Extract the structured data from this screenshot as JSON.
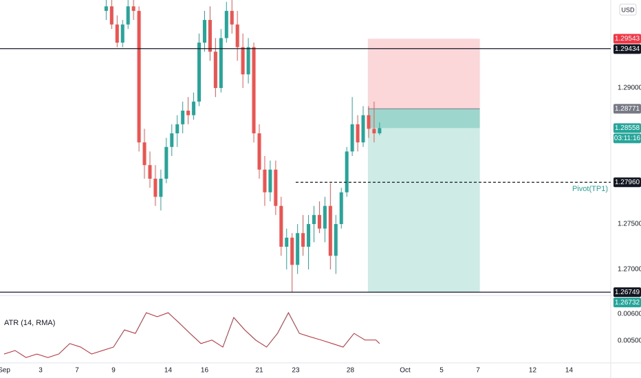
{
  "chart_data": [
    {
      "type": "candlestick",
      "currency": "USD",
      "xlim": [
        -0.226,
        33.283
      ],
      "ylim": [
        1.26712,
        1.2997
      ],
      "yticks": [
        {
          "value": 1.29,
          "label": "1.29000"
        },
        {
          "value": 1.275,
          "label": "1.27500"
        },
        {
          "value": 1.27,
          "label": "1.27000"
        }
      ],
      "grid": false,
      "up_color": "#26a69a",
      "down_color": "#ef5350",
      "x": [
        5.6,
        5.9,
        6.2,
        6.5,
        6.8,
        7.1,
        7.4,
        7.7,
        8.0,
        8.3,
        8.6,
        8.9,
        9.2,
        9.5,
        9.8,
        10.1,
        10.4,
        10.7,
        11.0,
        11.3,
        11.6,
        11.9,
        12.2,
        12.5,
        12.8,
        13.1,
        13.4,
        13.7,
        14.0,
        14.3,
        14.6,
        14.9,
        15.2,
        15.5,
        15.8,
        16.1,
        16.4,
        16.7,
        17.0,
        17.3,
        17.6,
        17.9,
        18.2,
        18.5,
        18.8,
        19.1,
        19.4,
        19.7,
        20.0,
        20.3,
        20.6
      ],
      "open": [
        1.2985,
        1.299,
        1.297,
        1.295,
        1.297,
        1.299,
        1.2985,
        1.284,
        1.2815,
        1.28,
        1.278,
        1.28,
        1.2835,
        1.285,
        1.286,
        1.2875,
        1.287,
        1.2885,
        1.295,
        1.2975,
        1.294,
        1.29,
        1.2955,
        1.2985,
        1.297,
        1.2945,
        1.2915,
        1.2945,
        1.285,
        1.281,
        1.2785,
        1.281,
        1.277,
        1.2725,
        1.2735,
        1.2705,
        1.274,
        1.2725,
        1.275,
        1.276,
        1.2745,
        1.277,
        1.2715,
        1.275,
        1.2785,
        1.283,
        1.286,
        1.284,
        1.287,
        1.2855,
        1.285
      ],
      "high": [
        1.2997,
        1.2997,
        1.298,
        1.2975,
        1.2997,
        1.2997,
        1.299,
        1.2855,
        1.283,
        1.2815,
        1.281,
        1.2845,
        1.286,
        1.287,
        1.2885,
        1.289,
        1.2895,
        1.296,
        1.2985,
        1.299,
        1.2955,
        1.2965,
        1.2995,
        1.2997,
        1.2985,
        1.296,
        1.2955,
        1.295,
        1.286,
        1.2825,
        1.282,
        1.282,
        1.278,
        1.2745,
        1.274,
        1.275,
        1.276,
        1.276,
        1.277,
        1.2775,
        1.278,
        1.2795,
        1.276,
        1.279,
        1.2835,
        1.289,
        1.287,
        1.288,
        1.288,
        1.2885,
        1.2862
      ],
      "low": [
        1.2975,
        1.2965,
        1.2945,
        1.2945,
        1.2965,
        1.2975,
        1.283,
        1.28,
        1.279,
        1.277,
        1.2765,
        1.2795,
        1.2825,
        1.2835,
        1.285,
        1.286,
        1.2865,
        1.288,
        1.294,
        1.293,
        1.289,
        1.2895,
        1.295,
        1.296,
        1.293,
        1.29,
        1.2905,
        1.284,
        1.28,
        1.277,
        1.2775,
        1.276,
        1.2715,
        1.27,
        1.2675,
        1.2695,
        1.2715,
        1.27,
        1.273,
        1.274,
        1.273,
        1.27,
        1.2695,
        1.2745,
        1.278,
        1.2825,
        1.283,
        1.2835,
        1.2845,
        1.284,
        1.2848
      ],
      "close": [
        1.299,
        1.297,
        1.295,
        1.297,
        1.299,
        1.2985,
        1.284,
        1.2815,
        1.28,
        1.278,
        1.28,
        1.2835,
        1.285,
        1.286,
        1.2875,
        1.287,
        1.2885,
        1.295,
        1.2975,
        1.294,
        1.29,
        1.2955,
        1.2985,
        1.297,
        1.2945,
        1.2915,
        1.2945,
        1.285,
        1.281,
        1.2785,
        1.281,
        1.277,
        1.2725,
        1.2735,
        1.2705,
        1.274,
        1.2725,
        1.275,
        1.276,
        1.2745,
        1.277,
        1.2715,
        1.275,
        1.2785,
        1.283,
        1.286,
        1.284,
        1.287,
        1.2855,
        1.285,
        1.28558
      ],
      "position": {
        "x_start": 19.96,
        "x_end": 26.1,
        "stop": 1.29543,
        "entry": 1.28771,
        "target": 1.26749
      },
      "lines": [
        {
          "value": 1.29434,
          "style": "solid"
        },
        {
          "value": 1.26749,
          "style": "solid"
        },
        {
          "value": 1.2796,
          "style": "dashed",
          "x_start": 16,
          "label": "Pivot(TP1)"
        }
      ],
      "price_labels": [
        {
          "value": 1.29543,
          "color": "#f23645"
        },
        {
          "value": 1.29434,
          "color": "#131722"
        },
        {
          "value": 1.28771,
          "color": "#787b86"
        },
        {
          "value": 1.28558,
          "color": "#26a69a",
          "countdown": "03:11:16"
        },
        {
          "value": 1.2796,
          "label": "1.27960",
          "color": "#131722"
        },
        {
          "value": 1.26749,
          "color": "#131722"
        },
        {
          "value": 1.26732,
          "color": "#26a69a"
        }
      ]
    },
    {
      "type": "line",
      "title": "ATR (14, RMA)",
      "color": "#b22833",
      "xlim": [
        -0.226,
        33.283
      ],
      "ylim": [
        0.00418,
        0.00669
      ],
      "yticks": [
        {
          "value": 0.006,
          "label": "0.00600"
        },
        {
          "value": 0.005,
          "label": "0.00500"
        }
      ],
      "xticks": [
        {
          "value": 0,
          "label": "Sep"
        },
        {
          "value": 2,
          "label": "3"
        },
        {
          "value": 4,
          "label": "7"
        },
        {
          "value": 6,
          "label": "9"
        },
        {
          "value": 9,
          "label": "14"
        },
        {
          "value": 11,
          "label": "16"
        },
        {
          "value": 14,
          "label": "21"
        },
        {
          "value": 16,
          "label": "23"
        },
        {
          "value": 19,
          "label": "28"
        },
        {
          "value": 22,
          "label": "Oct"
        },
        {
          "value": 24,
          "label": "5"
        },
        {
          "value": 26,
          "label": "7"
        },
        {
          "value": 29,
          "label": "12"
        },
        {
          "value": 31,
          "label": "14"
        }
      ],
      "x": [
        0,
        0.6,
        1.2,
        1.8,
        2.4,
        3.0,
        3.6,
        4.2,
        4.8,
        5.4,
        6.0,
        6.6,
        7.2,
        7.8,
        8.4,
        9.0,
        9.6,
        10.2,
        10.8,
        11.4,
        12.0,
        12.6,
        13.2,
        13.8,
        14.4,
        15.0,
        15.6,
        16.2,
        16.8,
        17.4,
        18.0,
        18.6,
        19.2,
        19.8,
        20.4,
        20.6
      ],
      "values": [
        0.00451,
        0.00464,
        0.00438,
        0.00451,
        0.00438,
        0.00451,
        0.0049,
        0.00477,
        0.00451,
        0.00464,
        0.00477,
        0.00541,
        0.00528,
        0.00605,
        0.0059,
        0.00605,
        0.00567,
        0.00528,
        0.0049,
        0.00503,
        0.00477,
        0.00587,
        0.00541,
        0.00503,
        0.00477,
        0.00528,
        0.00605,
        0.00528,
        0.00515,
        0.00503,
        0.0049,
        0.00477,
        0.00528,
        0.00503,
        0.00503,
        0.0049
      ]
    }
  ]
}
